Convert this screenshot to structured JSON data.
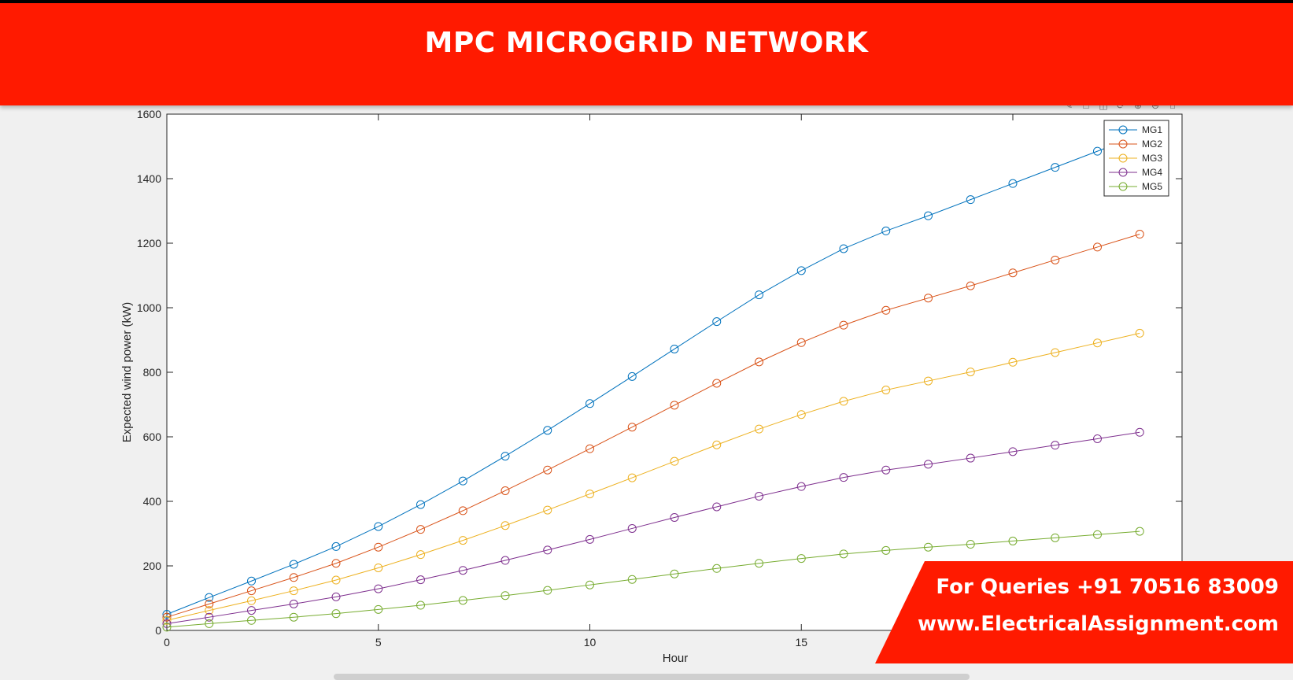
{
  "banner": {
    "title": "MPC MICROGRID NETWORK"
  },
  "toolbar": {
    "icons": [
      "brush-icon",
      "save-icon",
      "datatip-icon",
      "rotate-icon",
      "zoom-in-icon",
      "zoom-out-icon",
      "home-icon"
    ]
  },
  "promo": {
    "phone": "For Queries +91 70516 83009",
    "website": "www.ElectricalAssignment.com"
  },
  "chart_data": {
    "type": "line",
    "title": "",
    "xlabel": "Hour",
    "ylabel": "Expected wind power (kW)",
    "xlim": [
      0,
      24
    ],
    "ylim": [
      0,
      1600
    ],
    "xticks": [
      0,
      5,
      10,
      15
    ],
    "yticks": [
      0,
      200,
      400,
      600,
      800,
      1000,
      1200,
      1400,
      1600
    ],
    "grid": false,
    "legend_position": "top-right",
    "marker": "circle",
    "x": [
      0,
      1,
      2,
      3,
      4,
      5,
      6,
      7,
      8,
      9,
      10,
      11,
      12,
      13,
      14,
      15,
      16,
      17,
      18,
      19,
      20,
      21,
      22,
      23
    ],
    "series": [
      {
        "name": "MG1",
        "color": "#0072BD",
        "values": [
          50,
          102,
          153,
          205,
          260,
          322,
          390,
          463,
          540,
          620,
          703,
          787,
          872,
          957,
          1040,
          1115,
          1183,
          1238,
          1285,
          1335,
          1385,
          1435,
          1485,
          1535
        ]
      },
      {
        "name": "MG2",
        "color": "#D95319",
        "values": [
          41,
          82,
          123,
          164,
          208,
          258,
          313,
          371,
          433,
          497,
          563,
          630,
          698,
          766,
          832,
          892,
          946,
          992,
          1030,
          1068,
          1108,
          1148,
          1188,
          1228
        ]
      },
      {
        "name": "MG3",
        "color": "#EDB120",
        "values": [
          31,
          62,
          92,
          123,
          156,
          194,
          235,
          279,
          325,
          373,
          423,
          473,
          524,
          575,
          624,
          669,
          710,
          745,
          773,
          801,
          831,
          861,
          891,
          921
        ]
      },
      {
        "name": "MG4",
        "color": "#7E2F8E",
        "values": [
          21,
          41,
          62,
          82,
          104,
          129,
          157,
          186,
          217,
          249,
          282,
          316,
          350,
          383,
          416,
          446,
          474,
          497,
          515,
          534,
          554,
          574,
          594,
          614
        ]
      },
      {
        "name": "MG5",
        "color": "#77AC30",
        "values": [
          10,
          21,
          31,
          41,
          52,
          65,
          78,
          93,
          108,
          124,
          141,
          158,
          175,
          192,
          208,
          223,
          237,
          248,
          258,
          267,
          277,
          287,
          297,
          307
        ]
      }
    ]
  }
}
